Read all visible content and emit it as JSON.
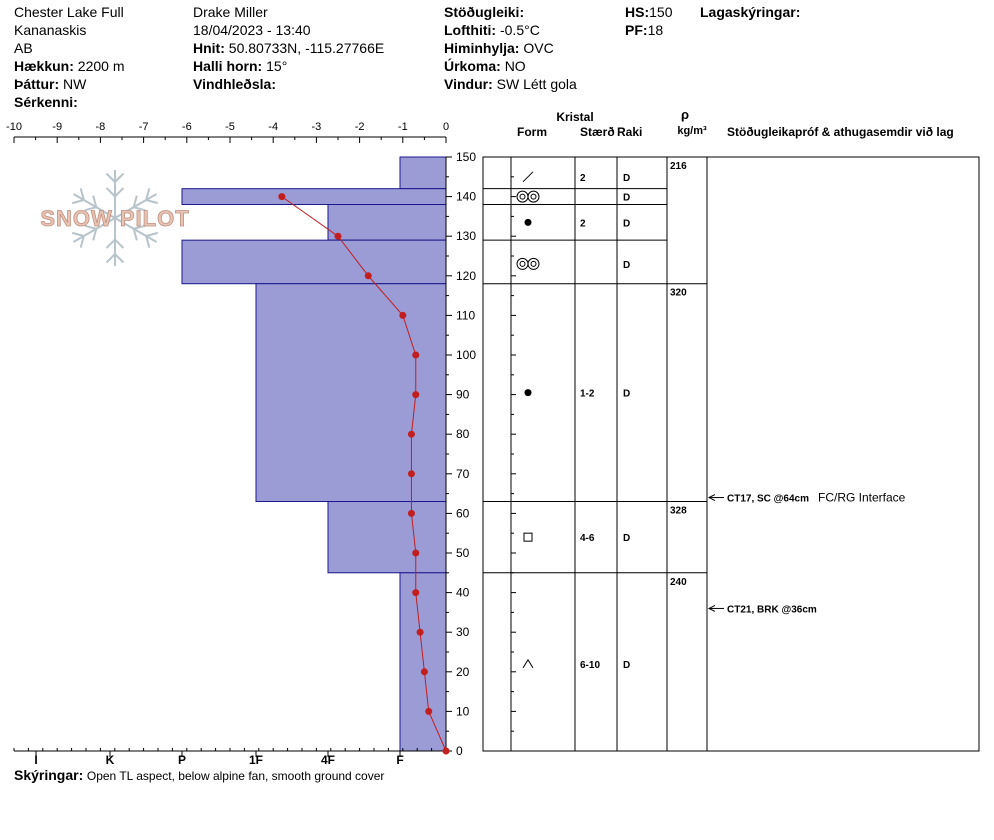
{
  "header": {
    "location": "Chester Lake Full",
    "region": "Kananaskis",
    "province": "AB",
    "elevation_label": "Hækkun:",
    "elevation_value": "2200 m",
    "aspect_label": "Þáttur:",
    "aspect_value": "NW",
    "features_label": "Sérkenni:",
    "features_value": "",
    "observer": "Drake Miller",
    "datetime": "18/04/2023 - 13:40",
    "coords_label": "Hnit:",
    "coords_value": "50.80733N, -115.27766E",
    "slope_label": "Halli horn:",
    "slope_value": "15°",
    "wind_loading_label": "Vindhleðsla:",
    "wind_loading_value": "",
    "stability_label": "Stöðugleiki:",
    "stability_value": "",
    "air_temp_label": "Lofthiti:",
    "air_temp_value": "-0.5°C",
    "sky_label": "Himinhylja:",
    "sky_value": "OVC",
    "precip_label": "Úrkoma:",
    "precip_value": "NO",
    "wind_label": "Vindur:",
    "wind_value": "SW Létt gola",
    "hs_label": "HS:",
    "hs_value": "150",
    "pf_label": "PF:",
    "pf_value": "18",
    "legend_label": "Lagaskýringar:"
  },
  "footer": {
    "label": "Skýringar:",
    "text": "Open TL aspect, below alpine fan, smooth ground cover"
  },
  "watermark": "SNOW PILOT",
  "columns": {
    "crystal": "Kristal",
    "form": "Form",
    "size": "Stærð",
    "moisture": "Raki",
    "rho": "ρ",
    "density_unit": "kg/m³",
    "stability_tests": "Stöðugleikapróf & athugasemdir við lag"
  },
  "colors": {
    "hardness_fill": "#9b9bd6",
    "hardness_stroke": "#1a1a8a",
    "temp_line": "#c21e1e"
  },
  "chart_data": {
    "type": "snow-profile",
    "temperature_axis": {
      "ticks": [
        "-10",
        "-9",
        "-8",
        "-7",
        "-6",
        "-5",
        "-4",
        "-3",
        "-2",
        "-1",
        "0"
      ],
      "range": [
        -10,
        0
      ]
    },
    "height_axis": {
      "ticks": [
        "150",
        "140",
        "130",
        "120",
        "110",
        "100",
        "90",
        "80",
        "70",
        "60",
        "50",
        "40",
        "30",
        "20",
        "10",
        "0"
      ],
      "range": [
        0,
        150
      ],
      "unit": "cm"
    },
    "hardness_axis": {
      "ticks": [
        "I",
        "K",
        "P",
        "1F",
        "4F",
        "F"
      ]
    },
    "hardness_layers": [
      {
        "top": 150,
        "bottom": 142,
        "hardness": "F"
      },
      {
        "top": 142,
        "bottom": 138,
        "hardness": "P"
      },
      {
        "top": 138,
        "bottom": 129,
        "hardness": "4F"
      },
      {
        "top": 129,
        "bottom": 118,
        "hardness": "P"
      },
      {
        "top": 118,
        "bottom": 63,
        "hardness": "1F"
      },
      {
        "top": 63,
        "bottom": 45,
        "hardness": "4F"
      },
      {
        "top": 45,
        "bottom": 0,
        "hardness": "F"
      }
    ],
    "temperature_profile": [
      {
        "height": 140,
        "temp": -3.8
      },
      {
        "height": 130,
        "temp": -2.5
      },
      {
        "height": 120,
        "temp": -1.8
      },
      {
        "height": 110,
        "temp": -1.0
      },
      {
        "height": 100,
        "temp": -0.7
      },
      {
        "height": 90,
        "temp": -0.7
      },
      {
        "height": 80,
        "temp": -0.8
      },
      {
        "height": 70,
        "temp": -0.8
      },
      {
        "height": 60,
        "temp": -0.8
      },
      {
        "height": 50,
        "temp": -0.7
      },
      {
        "height": 40,
        "temp": -0.7
      },
      {
        "height": 30,
        "temp": -0.6
      },
      {
        "height": 20,
        "temp": -0.5
      },
      {
        "height": 10,
        "temp": -0.4
      },
      {
        "height": 0,
        "temp": 0.0
      }
    ],
    "layers_table": [
      {
        "top": 150,
        "bottom": 142,
        "form": "slash",
        "size": "2",
        "moisture": "D"
      },
      {
        "top": 142,
        "bottom": 138,
        "form": "rounds",
        "size": "",
        "moisture": "D"
      },
      {
        "top": 138,
        "bottom": 129,
        "form": "dot",
        "size": "2",
        "moisture": "D"
      },
      {
        "top": 129,
        "bottom": 118,
        "form": "rounds",
        "size": "",
        "moisture": "D"
      },
      {
        "top": 118,
        "bottom": 63,
        "form": "dot",
        "size": "1-2",
        "moisture": "D"
      },
      {
        "top": 63,
        "bottom": 45,
        "form": "square",
        "size": "4-6",
        "moisture": "D"
      },
      {
        "top": 45,
        "bottom": 0,
        "form": "caret",
        "size": "6-10",
        "moisture": "D"
      }
    ],
    "densities": [
      {
        "height": 150,
        "value": "216"
      },
      {
        "height": 118,
        "value": "320"
      },
      {
        "height": 63,
        "value": "328"
      },
      {
        "height": 45,
        "value": "240"
      }
    ],
    "stability_tests": [
      {
        "height": 64,
        "label": "CT17, SC @64cm",
        "comment": "FC/RG Interface"
      },
      {
        "height": 36,
        "label": "CT21, BRK @36cm",
        "comment": ""
      }
    ]
  }
}
